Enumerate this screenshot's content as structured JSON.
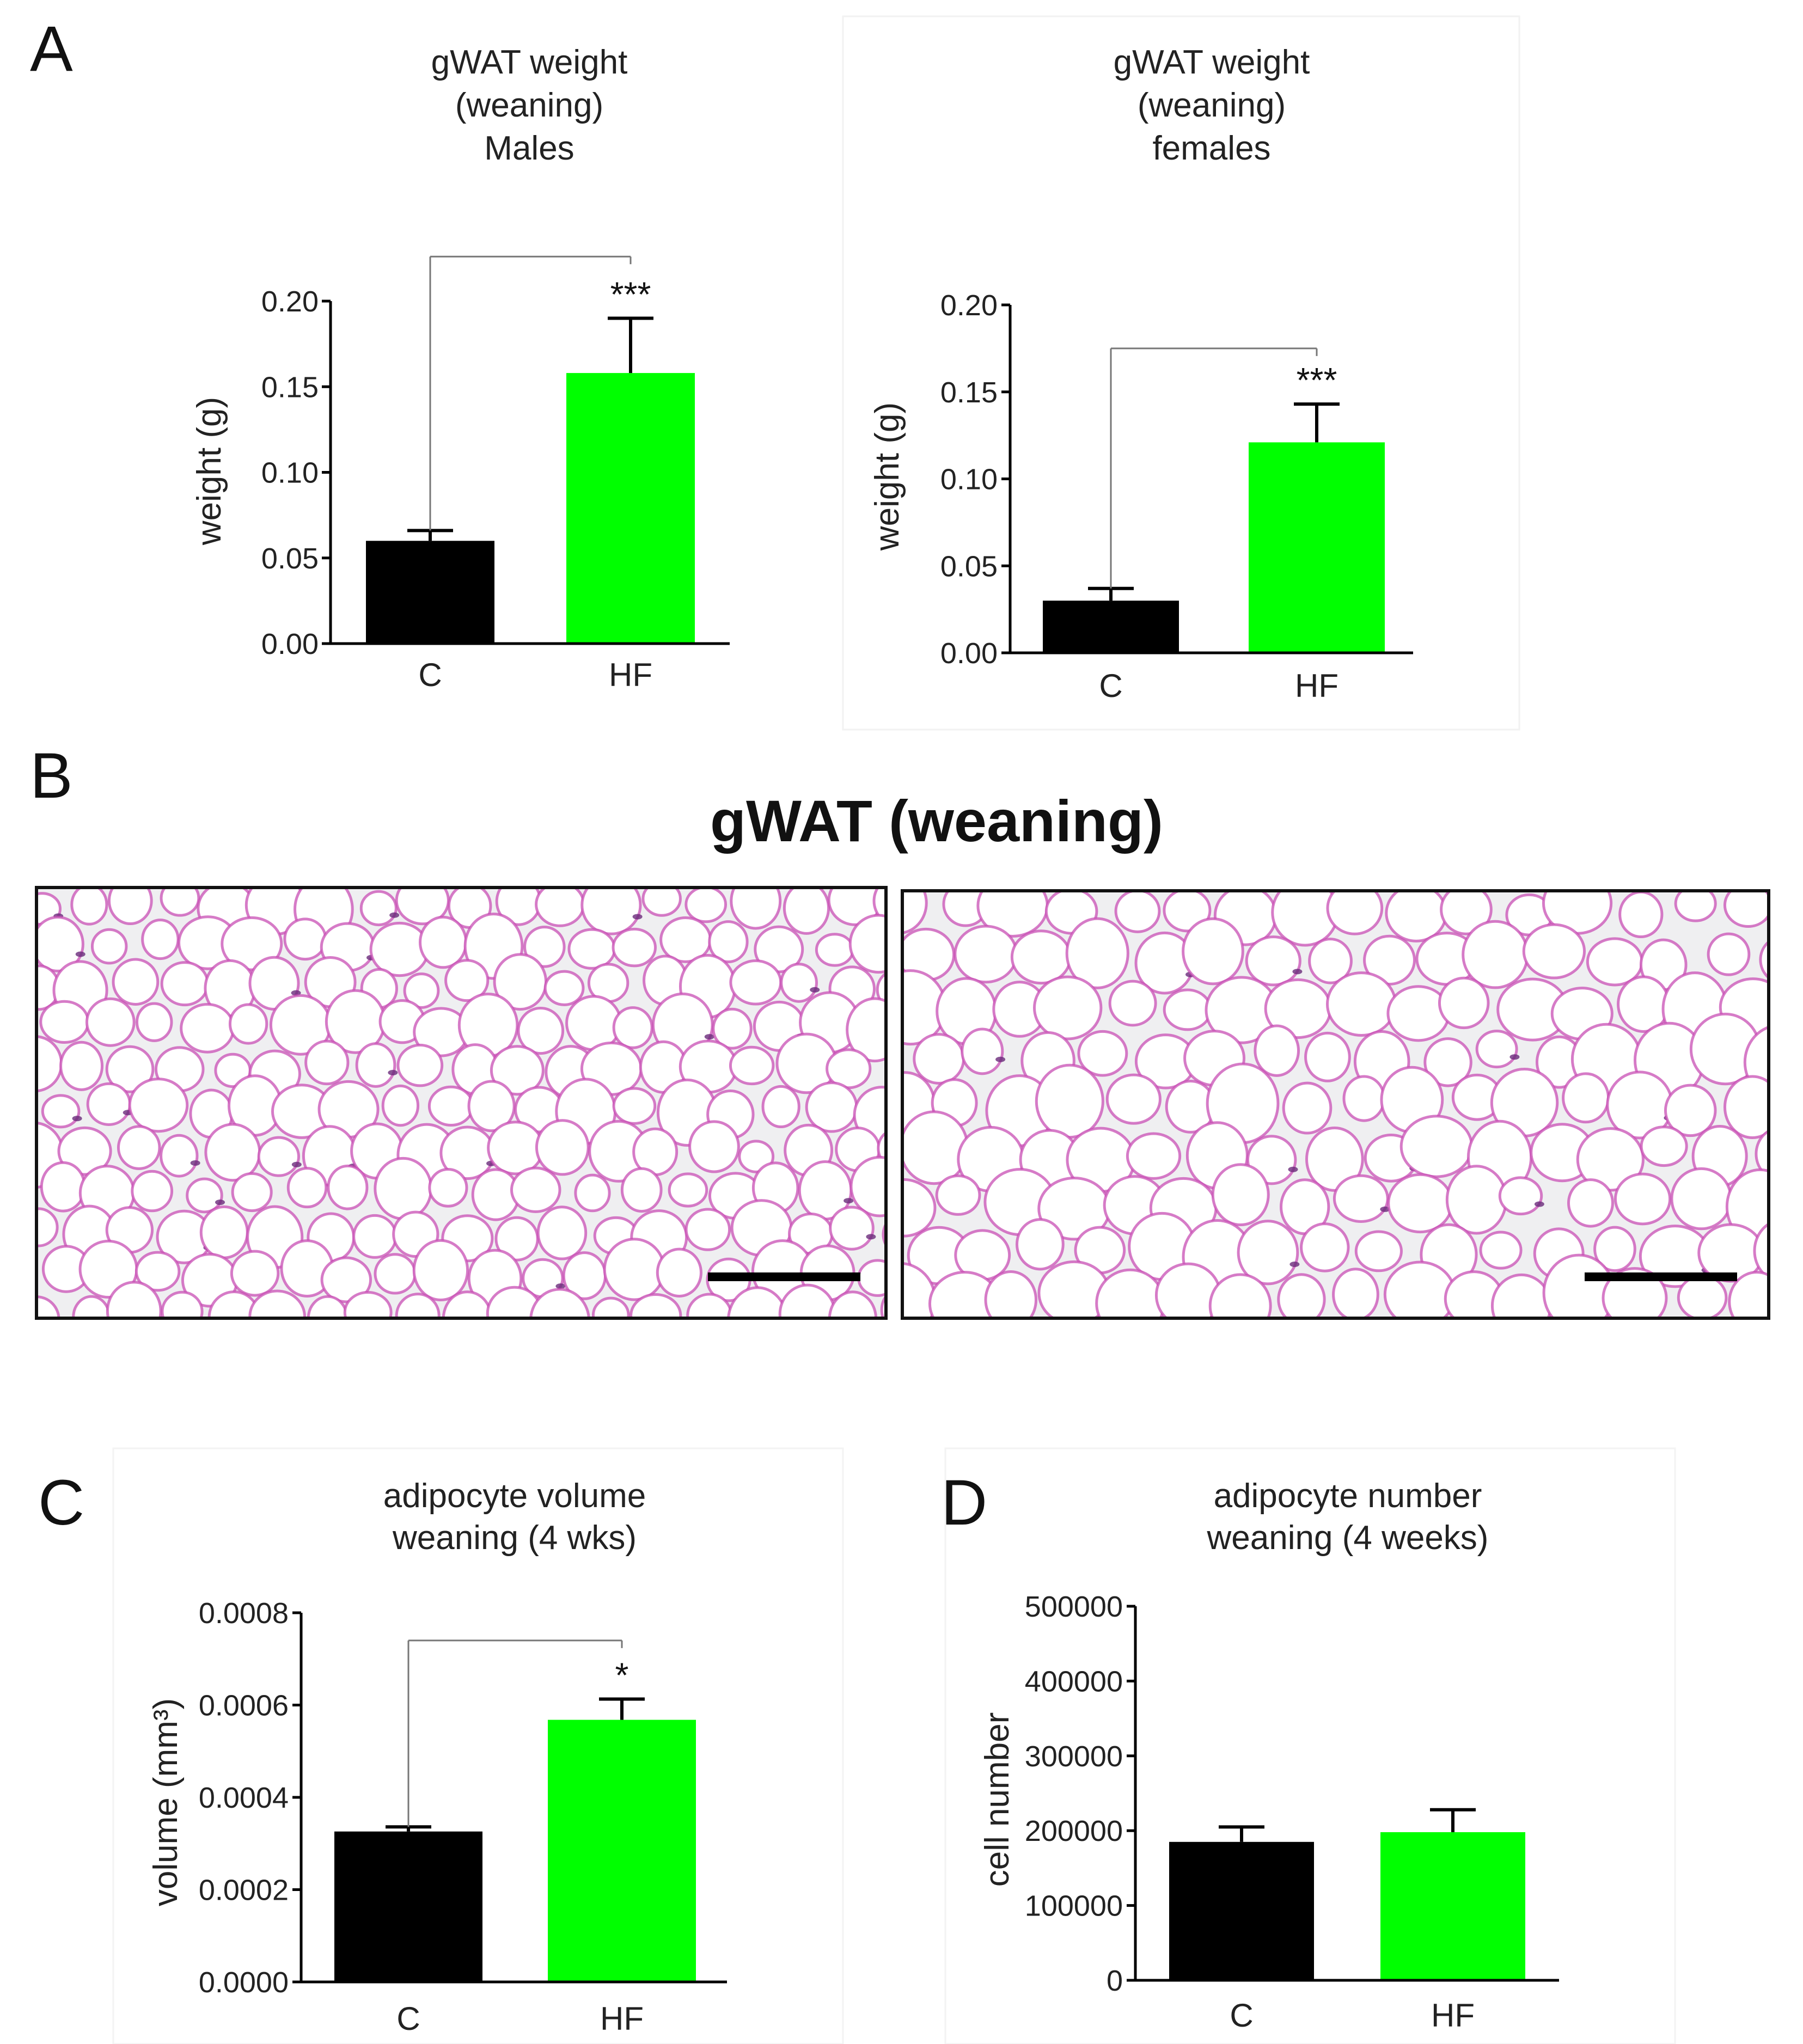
{
  "figure": {
    "panel_letters": [
      "A",
      "B",
      "C",
      "D"
    ],
    "histology_title": "gWAT (weaning)"
  },
  "colors": {
    "control": "#000000",
    "hf": "#00ff00",
    "axis": "#000000",
    "tissue_pink": "#c84fb4",
    "tissue_bg": "#efeff1"
  },
  "chart_data": [
    {
      "id": "A-males",
      "type": "bar",
      "title": [
        "gWAT weight",
        "(weaning)",
        "Males"
      ],
      "ylabel": "weight (g)",
      "xlabel": "",
      "categories": [
        "C",
        "HF"
      ],
      "values": [
        0.06,
        0.158
      ],
      "errors": [
        0.006,
        0.032
      ],
      "colors": [
        "#000000",
        "#00ff00"
      ],
      "ylim": [
        0,
        0.2
      ],
      "yticks": [
        0.0,
        0.05,
        0.1,
        0.15,
        0.2
      ],
      "ytick_labels": [
        "0.00",
        "0.05",
        "0.10",
        "0.15",
        "0.20"
      ],
      "significance": "***",
      "bracket_level": 0.226,
      "grid": false
    },
    {
      "id": "A-females",
      "type": "bar",
      "title": [
        "gWAT weight",
        "(weaning)",
        "females"
      ],
      "ylabel": "weight (g)",
      "xlabel": "",
      "categories": [
        "C",
        "HF"
      ],
      "values": [
        0.03,
        0.121
      ],
      "errors": [
        0.007,
        0.022
      ],
      "colors": [
        "#000000",
        "#00ff00"
      ],
      "ylim": [
        0,
        0.2
      ],
      "yticks": [
        0.0,
        0.05,
        0.1,
        0.15,
        0.2
      ],
      "ytick_labels": [
        "0.00",
        "0.05",
        "0.10",
        "0.15",
        "0.20"
      ],
      "significance": "***",
      "bracket_level": 0.175,
      "grid": false
    },
    {
      "id": "C",
      "type": "bar",
      "title": [
        "adipocyte volume",
        "weaning (4 wks)"
      ],
      "ylabel": "volume (mm³)",
      "xlabel": "",
      "categories": [
        "C",
        "HF"
      ],
      "values": [
        0.000326,
        0.000568
      ],
      "errors": [
        1e-05,
        4.5e-05
      ],
      "colors": [
        "#000000",
        "#00ff00"
      ],
      "ylim": [
        0,
        0.0008
      ],
      "yticks": [
        0.0,
        0.0002,
        0.0004,
        0.0006,
        0.0008
      ],
      "ytick_labels": [
        "0.0000",
        "0.0002",
        "0.0004",
        "0.0006",
        "0.0008"
      ],
      "significance": "*",
      "bracket_level": 0.00074,
      "grid": false
    },
    {
      "id": "D",
      "type": "bar",
      "title": [
        "adipocyte number",
        "weaning (4 weeks)"
      ],
      "ylabel": "cell number",
      "xlabel": "",
      "categories": [
        "C",
        "HF"
      ],
      "values": [
        185000,
        198000
      ],
      "errors": [
        20000,
        30000
      ],
      "colors": [
        "#000000",
        "#00ff00"
      ],
      "ylim": [
        0,
        500000
      ],
      "yticks": [
        0,
        100000,
        200000,
        300000,
        400000,
        500000
      ],
      "ytick_labels": [
        "0",
        "100000",
        "200000",
        "300000",
        "400000",
        "500000"
      ],
      "significance": "",
      "bracket_level": null,
      "grid": false
    }
  ]
}
